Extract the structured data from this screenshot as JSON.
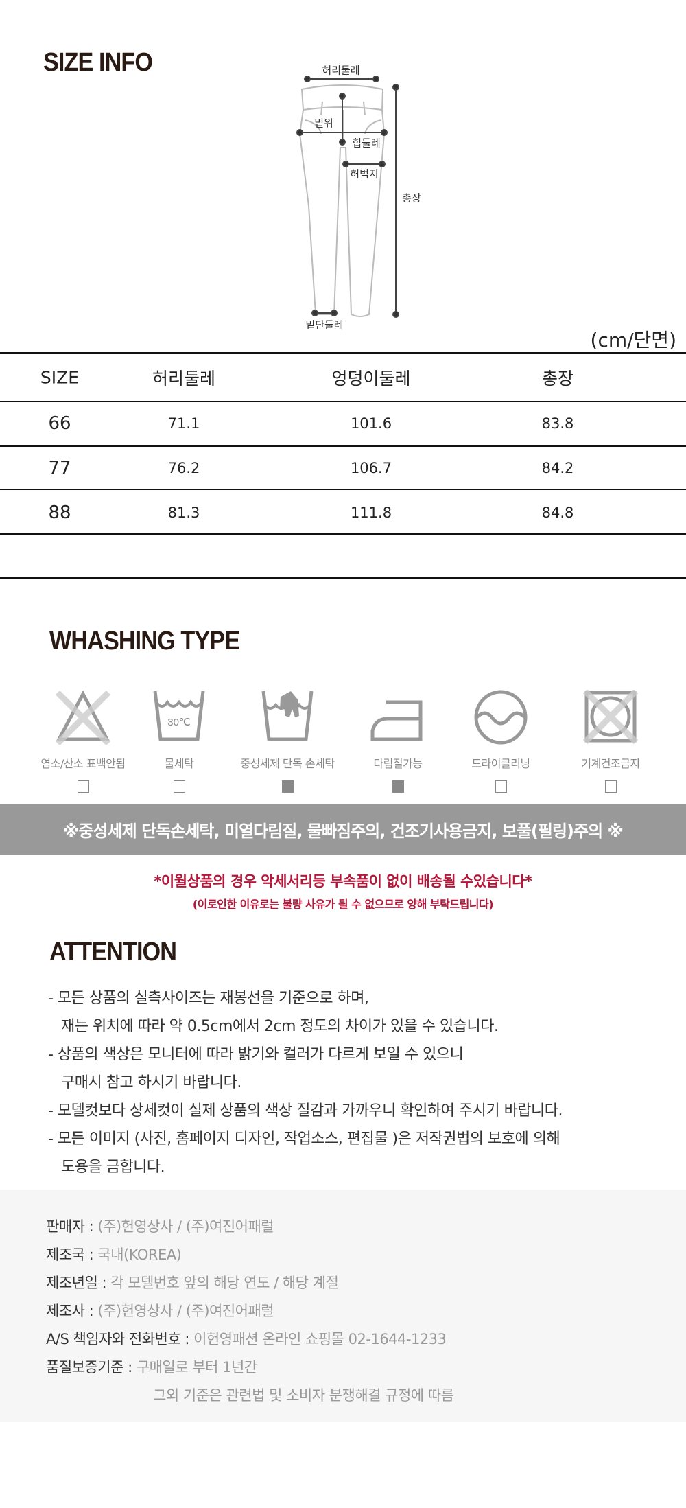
{
  "size_info": {
    "title": "SIZE INFO",
    "diagram_labels": {
      "waist": "허리둘레",
      "rise": "밑위",
      "hip": "힙둘레",
      "thigh": "허벅지",
      "total_length": "총장",
      "hem": "밑단둘레"
    },
    "unit": "(cm/단면)",
    "table": {
      "headers": [
        "SIZE",
        "허리둘레",
        "엉덩이둘레",
        "총장"
      ],
      "rows": [
        [
          "66",
          "71.1",
          "101.6",
          "83.8"
        ],
        [
          "77",
          "76.2",
          "106.7",
          "84.2"
        ],
        [
          "88",
          "81.3",
          "111.8",
          "84.8"
        ]
      ]
    }
  },
  "washing": {
    "title": "WHASHING TYPE",
    "items": [
      {
        "icon": "no-bleach-icon",
        "label": "염소/산소 표백안됨",
        "checked": false
      },
      {
        "icon": "water-wash-30-icon",
        "label": "물세탁",
        "temp": "30℃",
        "checked": false
      },
      {
        "icon": "hand-wash-icon",
        "label": "중성세제 단독 손세탁",
        "checked": true
      },
      {
        "icon": "iron-icon",
        "label": "다림질가능",
        "checked": true
      },
      {
        "icon": "dry-clean-icon",
        "label": "드라이클리닝",
        "checked": false
      },
      {
        "icon": "no-tumble-dry-icon",
        "label": "기계건조금지",
        "checked": false
      }
    ],
    "notice": "※중성세제 단독손세탁, 미열다림질, 물빠짐주의, 건조기사용금지, 보풀(필링)주의 ※",
    "color_gray": "#999999"
  },
  "warning": {
    "line1": "*이월상품의 경우 악세서리등 부속품이 없이 배송될 수있습니다*",
    "line2": "(이로인한 이유로는 불량 사유가 될 수 없으므로 양해 부탁드립니다)",
    "color": "#b5173a"
  },
  "attention": {
    "title": "ATTENTION",
    "lines": [
      "- 모든 상품의 실측사이즈는 재봉선을 기준으로 하며,",
      "  재는 위치에 따라 약 0.5cm에서 2cm 정도의 차이가 있을 수 있습니다.",
      "- 상품의 색상은 모니터에 따라 밝기와 컬러가 다르게 보일 수 있으니",
      "  구매시 참고 하시기 바랍니다.",
      "- 모델컷보다 상세컷이 실제 상품의 색상 질감과 가까우니 확인하여 주시기 바랍니다.",
      "- 모든 이미지 (사진, 홈페이지 디자인, 작업소스, 편집물 )은 저작권법의 보호에 의해",
      "  도용을 금합니다."
    ]
  },
  "footer": {
    "rows": [
      {
        "key": "판매자 : ",
        "value": "(주)헌영상사 / (주)여진어패럴"
      },
      {
        "key": "제조국 : ",
        "value": "국내(KOREA)"
      },
      {
        "key": "제조년일 : ",
        "value": "각 모델번호 앞의 해당 연도 / 해당 계절"
      },
      {
        "key": "제조사 : ",
        "value": "(주)헌영상사 / (주)여진어패럴"
      },
      {
        "key": "A/S 책임자와 전화번호 : ",
        "value": "이헌영패션 온라인 쇼핑몰 02-1644-1233"
      },
      {
        "key": "품질보증기준 : ",
        "value": "구매일로 부터 1년간"
      }
    ],
    "continuation": "그외 기준은 관련법 및 소비자 분쟁해결 규정에 따름"
  }
}
